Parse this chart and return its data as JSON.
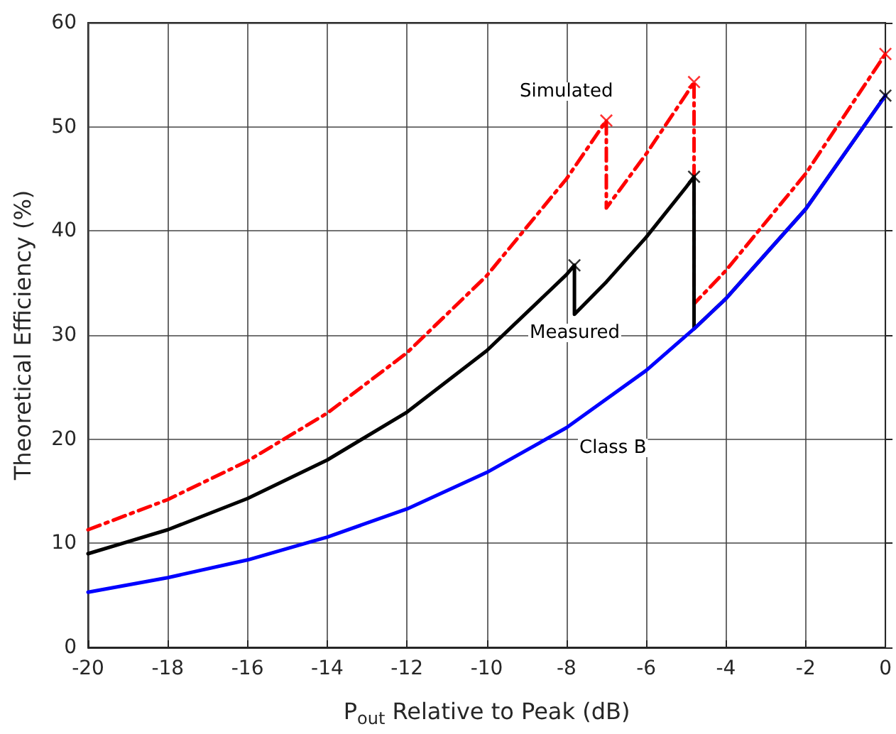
{
  "chart_data": {
    "type": "line",
    "xlabel": "P$_{out}$ Relative to Peak (dB)",
    "ylabel": "Theoretical Efficiency (%)",
    "xlim": [
      -20,
      0
    ],
    "xticks": [
      -20,
      -18,
      -16,
      -14,
      -12,
      -10,
      -8,
      -6,
      -4,
      -2,
      0
    ],
    "ylim": [
      0,
      60
    ],
    "yticks": [
      0,
      10,
      20,
      30,
      40,
      50,
      60
    ],
    "grid": true,
    "series": [
      {
        "color": "#ff0000",
        "line_style": "dashdot",
        "marker": "none",
        "x": [
          -20,
          -18,
          -16,
          -14,
          -12,
          -10,
          -8,
          -7,
          -7,
          -6,
          -5,
          -4.8,
          -4.8,
          -4,
          -2,
          0
        ],
        "values": [
          11.3,
          14.2,
          17.9,
          22.5,
          28.3,
          35.7,
          45,
          50.6,
          42.2,
          47.4,
          53.1,
          54.3,
          33,
          36.2,
          45.5,
          57
        ]
      },
      {
        "color": "#000000",
        "line_style": "solid",
        "marker": "none",
        "x": [
          -20,
          -18,
          -16,
          -14,
          -12,
          -10,
          -8,
          -7.8,
          -7.8,
          -7,
          -6,
          -5,
          -4.8,
          -4.8,
          -4,
          -2,
          0
        ],
        "values": [
          9,
          11.3,
          14.3,
          18,
          22.6,
          28.5,
          35.8,
          36.7,
          32,
          35.1,
          39.4,
          44.2,
          45.2,
          30.6,
          33.5,
          42.1,
          53
        ]
      },
      {
        "color": "#0000ff",
        "line_style": "solid",
        "marker": "none",
        "x": [
          -20,
          -18,
          -16,
          -14,
          -12,
          -10,
          -8,
          -6,
          -4.8,
          -4,
          -2,
          0
        ],
        "values": [
          5.3,
          6.7,
          8.4,
          10.6,
          13.3,
          16.8,
          21.1,
          26.6,
          30.6,
          33.5,
          42.1,
          53
        ]
      },
      {
        "type": "scatter",
        "color": "#ff0000",
        "marker": "cross",
        "x": [
          -7,
          -4.8,
          0
        ],
        "values": [
          50.6,
          54.3,
          57
        ]
      },
      {
        "type": "scatter",
        "color": "#000000",
        "marker": "cross",
        "x": [
          -7.8,
          -4.8,
          0
        ],
        "values": [
          36.7,
          45.2,
          53
        ]
      }
    ],
    "annotations": [
      "Simulated",
      "Measured",
      "Class B"
    ]
  }
}
